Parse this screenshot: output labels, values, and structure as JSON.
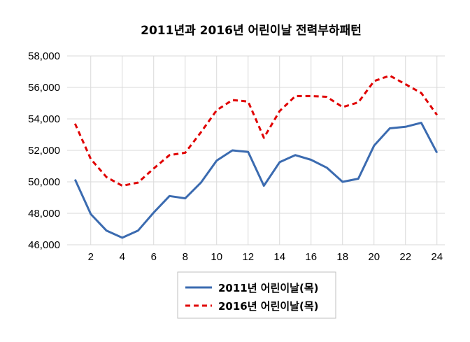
{
  "chart_data": {
    "type": "line",
    "title": "2011년과 2016년 어린이날 전력부하패턴",
    "xlabel": "",
    "ylabel": "",
    "x": [
      1,
      2,
      3,
      4,
      5,
      6,
      7,
      8,
      9,
      10,
      11,
      12,
      13,
      14,
      15,
      16,
      17,
      18,
      19,
      20,
      21,
      22,
      23,
      24
    ],
    "x_tick_labels": [
      "2",
      "4",
      "6",
      "8",
      "10",
      "12",
      "14",
      "16",
      "18",
      "20",
      "22",
      "24"
    ],
    "y_tick_labels": [
      "46,000",
      "48,000",
      "50,000",
      "52,000",
      "54,000",
      "56,000",
      "58,000"
    ],
    "ylim": [
      46000,
      58000
    ],
    "grid": "horizontal",
    "legend_placement": "bottom",
    "series": [
      {
        "name": "2011년 어린이날(목)",
        "color": "#3B6BB0",
        "style": "solid",
        "values": [
          50150,
          47950,
          46900,
          46450,
          46900,
          48050,
          49100,
          48950,
          49950,
          51350,
          52000,
          51900,
          49750,
          51250,
          51700,
          51400,
          50900,
          50000,
          50200,
          52300,
          53400,
          53500,
          53750,
          51850
        ]
      },
      {
        "name": "2016년 어린이날(목)",
        "color": "#E00000",
        "style": "dashed",
        "values": [
          53700,
          51450,
          50300,
          49750,
          49950,
          50850,
          51700,
          51850,
          53150,
          54550,
          55200,
          55100,
          52800,
          54500,
          55450,
          55450,
          55400,
          54750,
          55050,
          56400,
          56750,
          56200,
          55650,
          54250
        ]
      }
    ]
  }
}
